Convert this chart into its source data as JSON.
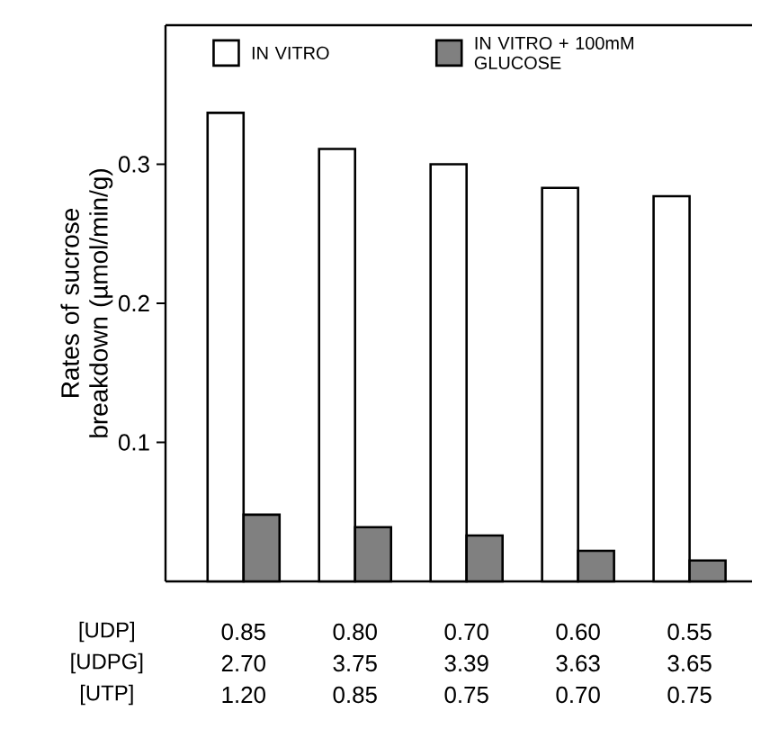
{
  "chart_data": {
    "type": "bar",
    "ylabel": "Rates of sucrose breakdown (µmol/min/g)",
    "categories": [
      null,
      null,
      null,
      null,
      null
    ],
    "series": [
      {
        "name": "IN VITRO",
        "color": "#ffffff",
        "values": [
          0.337,
          0.311,
          0.3,
          0.283,
          0.277
        ]
      },
      {
        "name": "IN VITRO + 100mM GLUCOSE",
        "color": "#808080",
        "values": [
          0.048,
          0.039,
          0.033,
          0.022,
          0.015
        ]
      }
    ],
    "ylim": [
      0,
      0.4
    ],
    "yticks": [
      0.1,
      0.2,
      0.3
    ],
    "legend": "top",
    "annotations": [
      "[UDP]",
      "0.85",
      "0.80",
      "0.70",
      "0.60",
      "0.55",
      "[UDPG]",
      "2.70",
      "3.75",
      "3.39",
      "3.63",
      "3.65",
      "[UTP]",
      "1.20",
      "0.85",
      "0.75",
      "0.70",
      "0.75"
    ]
  }
}
